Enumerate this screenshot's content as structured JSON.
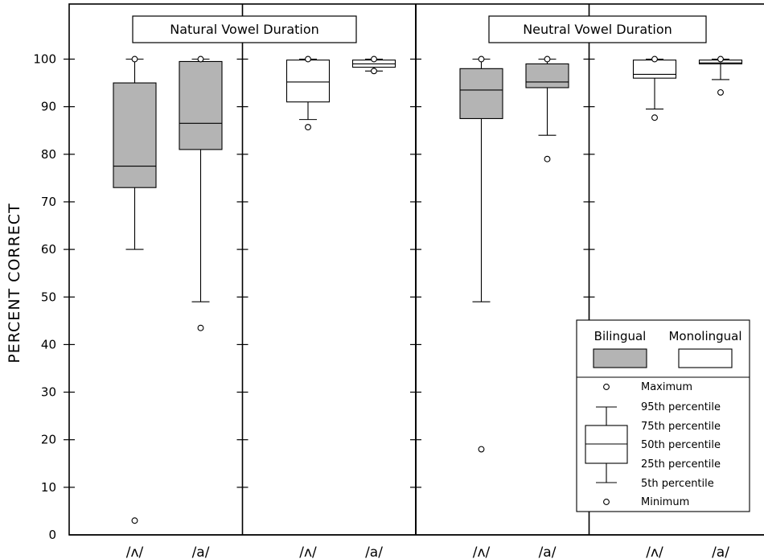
{
  "chart_data": {
    "type": "box",
    "ylabel": "PERCENT CORRECT",
    "ylim": [
      0,
      100
    ],
    "yticks": [
      0,
      10,
      20,
      30,
      40,
      50,
      60,
      70,
      80,
      90,
      100
    ],
    "panel_titles": [
      "Natural Vowel Duration",
      "Neutral Vowel Duration"
    ],
    "categories": [
      "/ʌ/",
      "/a/"
    ],
    "panels": [
      {
        "condition": "Natural Vowel Duration",
        "group": "Bilingual",
        "fill": "#b4b4b4",
        "boxes": [
          {
            "category": "/ʌ/",
            "max": 100,
            "p95": 100,
            "p75": 95,
            "p50": 77.5,
            "p25": 73,
            "p5": 60,
            "min": 3
          },
          {
            "category": "/a/",
            "max": 100,
            "p95": 100,
            "p75": 99.5,
            "p50": 86.5,
            "p25": 81,
            "p5": 49,
            "min": 43.5
          }
        ]
      },
      {
        "condition": "Natural Vowel Duration",
        "group": "Monolingual",
        "fill": "#ffffff",
        "boxes": [
          {
            "category": "/ʌ/",
            "max": 100,
            "p95": 100,
            "p75": 99.8,
            "p50": 95.2,
            "p25": 91,
            "p5": 87.3,
            "min": 85.7
          },
          {
            "category": "/a/",
            "max": 100,
            "p95": 100,
            "p75": 99.8,
            "p50": 99,
            "p25": 98.3,
            "p5": 97.5,
            "min": 97.5
          }
        ]
      },
      {
        "condition": "Neutral Vowel Duration",
        "group": "Bilingual",
        "fill": "#b4b4b4",
        "boxes": [
          {
            "category": "/ʌ/",
            "max": 100,
            "p95": 100,
            "p75": 98,
            "p50": 93.5,
            "p25": 87.5,
            "p5": 49,
            "min": 18
          },
          {
            "category": "/a/",
            "max": 100,
            "p95": 100,
            "p75": 99,
            "p50": 95.2,
            "p25": 94,
            "p5": 84,
            "min": 79
          }
        ]
      },
      {
        "condition": "Neutral Vowel Duration",
        "group": "Monolingual",
        "fill": "#ffffff",
        "boxes": [
          {
            "category": "/ʌ/",
            "max": 100,
            "p95": 100,
            "p75": 99.8,
            "p50": 96.8,
            "p25": 96,
            "p5": 89.5,
            "min": 87.7
          },
          {
            "category": "/a/",
            "max": 100,
            "p95": 100,
            "p75": 99.8,
            "p50": 99.2,
            "p25": 99,
            "p5": 95.7,
            "min": 93
          }
        ]
      }
    ],
    "legend": {
      "groups": [
        "Bilingual",
        "Monolingual"
      ],
      "items": [
        "Maximum",
        "95th percentile",
        "75th percentile",
        "50th percentile",
        "25th percentile",
        "5th percentile",
        "Minimum"
      ]
    }
  }
}
